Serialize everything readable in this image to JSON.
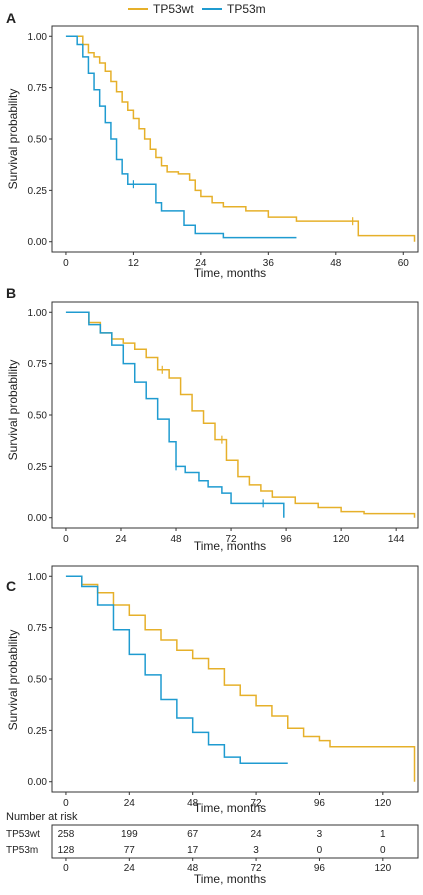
{
  "legend": {
    "items": [
      {
        "label": "TP53wt",
        "color": "#E6B02A"
      },
      {
        "label": "TP53m",
        "color": "#1F9BD0"
      }
    ]
  },
  "chart_data": [
    {
      "type": "line",
      "step": true,
      "panel_label": "A",
      "ylabel": "Survival probability",
      "xlabel": "Time, months",
      "xlim": [
        0,
        62
      ],
      "ylim": [
        0,
        1
      ],
      "xticks": [
        0,
        12,
        24,
        36,
        48,
        60
      ],
      "yticks": [
        "0.00",
        "0.25",
        "0.50",
        "0.75",
        "1.00"
      ],
      "series": [
        {
          "name": "TP53wt",
          "color": "#E6B02A",
          "x": [
            0,
            3,
            4,
            5,
            6,
            7,
            8,
            9,
            10,
            11,
            12,
            13,
            14,
            15,
            16,
            17,
            18,
            20,
            22,
            23,
            24,
            26,
            28,
            32,
            36,
            40,
            41,
            51,
            52,
            55,
            60,
            62
          ],
          "y": [
            1.0,
            0.96,
            0.92,
            0.9,
            0.87,
            0.83,
            0.78,
            0.73,
            0.68,
            0.64,
            0.6,
            0.55,
            0.5,
            0.45,
            0.41,
            0.37,
            0.34,
            0.33,
            0.3,
            0.25,
            0.22,
            0.19,
            0.17,
            0.15,
            0.12,
            0.12,
            0.1,
            0.1,
            0.03,
            0.03,
            0.03,
            0.0
          ],
          "censored": [
            [
              51,
              0.1
            ]
          ]
        },
        {
          "name": "TP53m",
          "color": "#1F9BD0",
          "x": [
            0,
            2,
            3,
            4,
            5,
            6,
            7,
            8,
            9,
            10,
            11,
            12,
            16,
            17,
            21,
            23,
            28,
            41
          ],
          "y": [
            1.0,
            0.96,
            0.9,
            0.82,
            0.74,
            0.66,
            0.58,
            0.5,
            0.4,
            0.33,
            0.28,
            0.28,
            0.19,
            0.15,
            0.08,
            0.04,
            0.02,
            0.02
          ],
          "censored": [
            [
              12,
              0.28
            ]
          ]
        }
      ]
    },
    {
      "type": "line",
      "step": true,
      "panel_label": "B",
      "ylabel": "Survival probability",
      "xlabel": "Time, months",
      "xlim": [
        0,
        152
      ],
      "ylim": [
        0,
        1
      ],
      "xticks": [
        0,
        24,
        48,
        72,
        96,
        120,
        144
      ],
      "yticks": [
        "0.00",
        "0.25",
        "0.50",
        "0.75",
        "1.00"
      ],
      "series": [
        {
          "name": "TP53wt",
          "color": "#E6B02A",
          "x": [
            0,
            10,
            15,
            20,
            25,
            30,
            35,
            40,
            45,
            50,
            55,
            60,
            65,
            70,
            75,
            80,
            85,
            90,
            100,
            110,
            120,
            130,
            150,
            152
          ],
          "y": [
            1.0,
            0.95,
            0.9,
            0.87,
            0.85,
            0.82,
            0.78,
            0.72,
            0.68,
            0.6,
            0.52,
            0.46,
            0.38,
            0.28,
            0.2,
            0.16,
            0.13,
            0.1,
            0.07,
            0.05,
            0.03,
            0.02,
            0.02,
            0.0
          ],
          "censored": [
            [
              42,
              0.72
            ],
            [
              68,
              0.38
            ]
          ]
        },
        {
          "name": "TP53m",
          "color": "#1F9BD0",
          "x": [
            0,
            10,
            15,
            20,
            25,
            30,
            35,
            40,
            45,
            48,
            52,
            58,
            62,
            68,
            72,
            80,
            86,
            95
          ],
          "y": [
            1.0,
            0.94,
            0.9,
            0.84,
            0.75,
            0.66,
            0.58,
            0.48,
            0.37,
            0.25,
            0.22,
            0.18,
            0.15,
            0.12,
            0.07,
            0.07,
            0.07,
            0.0
          ],
          "censored": [
            [
              48,
              0.25
            ],
            [
              86,
              0.07
            ]
          ]
        }
      ]
    },
    {
      "type": "line",
      "step": true,
      "panel_label": "C",
      "ylabel": "Survival probability",
      "xlabel": "Time, months",
      "xlim": [
        0,
        132
      ],
      "ylim": [
        0,
        1
      ],
      "xticks": [
        0,
        24,
        48,
        72,
        96,
        120
      ],
      "yticks": [
        "0.00",
        "0.25",
        "0.50",
        "0.75",
        "1.00"
      ],
      "series": [
        {
          "name": "TP53wt",
          "color": "#E6B02A",
          "x": [
            0,
            6,
            12,
            18,
            24,
            30,
            36,
            42,
            48,
            54,
            60,
            66,
            72,
            78,
            84,
            90,
            96,
            100,
            106,
            132
          ],
          "y": [
            1.0,
            0.96,
            0.92,
            0.86,
            0.81,
            0.74,
            0.69,
            0.64,
            0.6,
            0.55,
            0.47,
            0.42,
            0.37,
            0.32,
            0.26,
            0.22,
            0.2,
            0.17,
            0.17,
            0.0
          ],
          "censored": []
        },
        {
          "name": "TP53m",
          "color": "#1F9BD0",
          "x": [
            0,
            6,
            12,
            18,
            24,
            30,
            36,
            42,
            48,
            54,
            60,
            66,
            72,
            78,
            84
          ],
          "y": [
            1.0,
            0.95,
            0.86,
            0.74,
            0.62,
            0.52,
            0.4,
            0.31,
            0.24,
            0.18,
            0.12,
            0.09,
            0.09,
            0.09,
            0.09
          ],
          "censored": []
        }
      ]
    }
  ],
  "risk_table": {
    "title": "Number at risk",
    "xlabel": "Time, months",
    "xticks": [
      0,
      24,
      48,
      72,
      96,
      120
    ],
    "rows": [
      {
        "name": "TP53wt",
        "color": "#E6B02A",
        "values": [
          258,
          199,
          67,
          24,
          3,
          1
        ]
      },
      {
        "name": "TP53m",
        "color": "#1F9BD0",
        "values": [
          128,
          77,
          17,
          3,
          0,
          0
        ]
      }
    ]
  }
}
